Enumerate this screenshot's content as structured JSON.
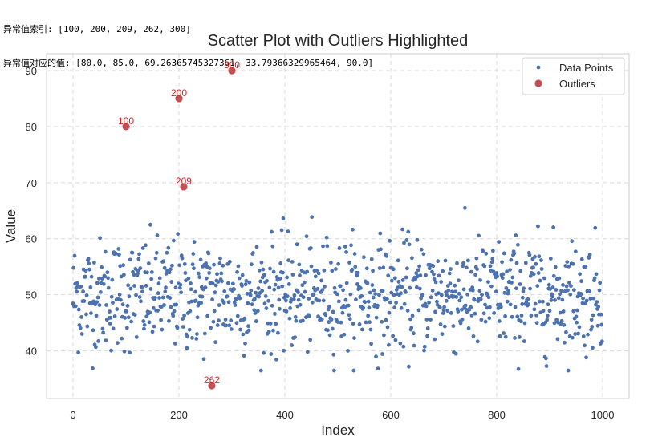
{
  "console": {
    "line1_label": "异常值索引:",
    "line1_value": "[100, 200, 209, 262, 300]",
    "line2_label": "异常值对应的值:",
    "line2_value": "[80.0, 85.0, 69.26365745327361, 33.79366329965464, 90.0]"
  },
  "chart_data": {
    "type": "scatter",
    "title": "Scatter Plot with Outliers Highlighted",
    "xlabel": "Index",
    "ylabel": "Value",
    "xlim": [
      -50,
      1050
    ],
    "ylim": [
      31.5,
      93
    ],
    "xticks": [
      0,
      200,
      400,
      600,
      800,
      1000
    ],
    "yticks": [
      40,
      50,
      60,
      70,
      80,
      90
    ],
    "grid": true,
    "legend_position": "top-right",
    "colors": {
      "points": "#4c72b0",
      "outliers": "#c44e52",
      "annotation": "#d62728"
    },
    "series": [
      {
        "name": "Data Points",
        "x_range": [
          0,
          999
        ],
        "approx_mean": 50,
        "approx_std": 5,
        "count": 1000
      },
      {
        "name": "Outliers",
        "x": [
          100,
          200,
          209,
          262,
          300
        ],
        "y": [
          80.0,
          85.0,
          69.26365745327361,
          33.79366329965464,
          90.0
        ]
      }
    ],
    "annotations": [
      "100",
      "200",
      "209",
      "262",
      "300"
    ]
  }
}
